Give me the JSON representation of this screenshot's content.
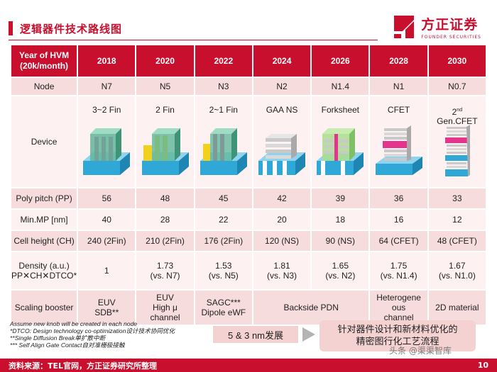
{
  "title": "逻辑器件技术路线图",
  "logo": {
    "name_cn": "方正证券",
    "name_en": "FOUNDER SECURITIES",
    "icon": "founder-logo-icon",
    "brand_color": "#c8102e"
  },
  "table": {
    "header_label": "Year of HVM\n(20k/month)",
    "years": [
      "2018",
      "2020",
      "2022",
      "2024",
      "2026",
      "2028",
      "2030"
    ],
    "node": {
      "label": "Node",
      "values": [
        "N7",
        "N5",
        "N3",
        "N2",
        "N1.4",
        "N1",
        "N0.7"
      ]
    },
    "device": {
      "label": "Device",
      "types": [
        "3~2 Fin",
        "2 Fin",
        "2~1 Fin",
        "GAA NS",
        "Forksheet",
        "CFET"
      ],
      "last_type_base": "2",
      "last_type_sup": "nd",
      "last_type_rest": "Gen.CFET"
    },
    "poly_pitch": {
      "label": "Poly pitch (PP)",
      "values": [
        "56",
        "48",
        "45",
        "42",
        "39",
        "36",
        "33"
      ]
    },
    "min_mp": {
      "label": "Min.MP [nm]",
      "values": [
        "40",
        "28",
        "22",
        "20",
        "18",
        "16",
        "12"
      ]
    },
    "cell_height": {
      "label": "Cell height (CH)",
      "values": [
        "240 (2Fin)",
        "210 (2Fin)",
        "176 (2Fin)",
        "120 (NS)",
        "90 (NS)",
        "64 (CFET)",
        "48 (CFET)"
      ]
    },
    "density": {
      "label_line1": "Density (a.u.)",
      "label_line2": "PP✕CH✕DTCO*",
      "values": [
        [
          "1",
          ""
        ],
        [
          "1.73",
          "(vs. N7)"
        ],
        [
          "1.53",
          "(vs. N5)"
        ],
        [
          "1.81",
          "(vs. N3)"
        ],
        [
          "1.65",
          "(vs. N2)"
        ],
        [
          "1.75",
          "(vs. N1.4)"
        ],
        [
          "1.67",
          "(vs. N1.0)"
        ]
      ]
    },
    "scaling": {
      "label": "Scaling booster",
      "c2018": [
        "EUV",
        "SDB**"
      ],
      "c2020": [
        "EUV",
        "High μ",
        "channel"
      ],
      "c2022": [
        "SAGC***",
        "Dipole eWF"
      ],
      "c2024_2026": "Backside PDN",
      "c2028": [
        "Heterogene",
        "ous",
        "channel"
      ],
      "c2030": "2D material"
    }
  },
  "footnotes": [
    "Assume new knob will be created in each node",
    "*DTCO: Design technology co-optimization设计技术协同优化",
    "**Single Diffusion Break单扩散中断",
    "*** Self Align Gate Contact自对准栅极接触"
  ],
  "callout_left": "5 & 3 nm发展",
  "callout_right": [
    "针对器件设计和新材料优化的",
    "精密图行化工艺流程"
  ],
  "footer": {
    "source": "资料来源：TEL官网，方正证券研究所整理",
    "page": "10"
  },
  "watermark": "头条 @渠渠智库",
  "colors": {
    "header": "#c8102e",
    "row_shade": "#f6dcdc",
    "row_light": "#fdf1f1",
    "substrate": "#2fa8d8",
    "gate_green": "#5fb79a",
    "gate_pink": "#e4348c",
    "fin_yellow": "#f2d11c",
    "stack_gray": "#c9c9c9"
  }
}
